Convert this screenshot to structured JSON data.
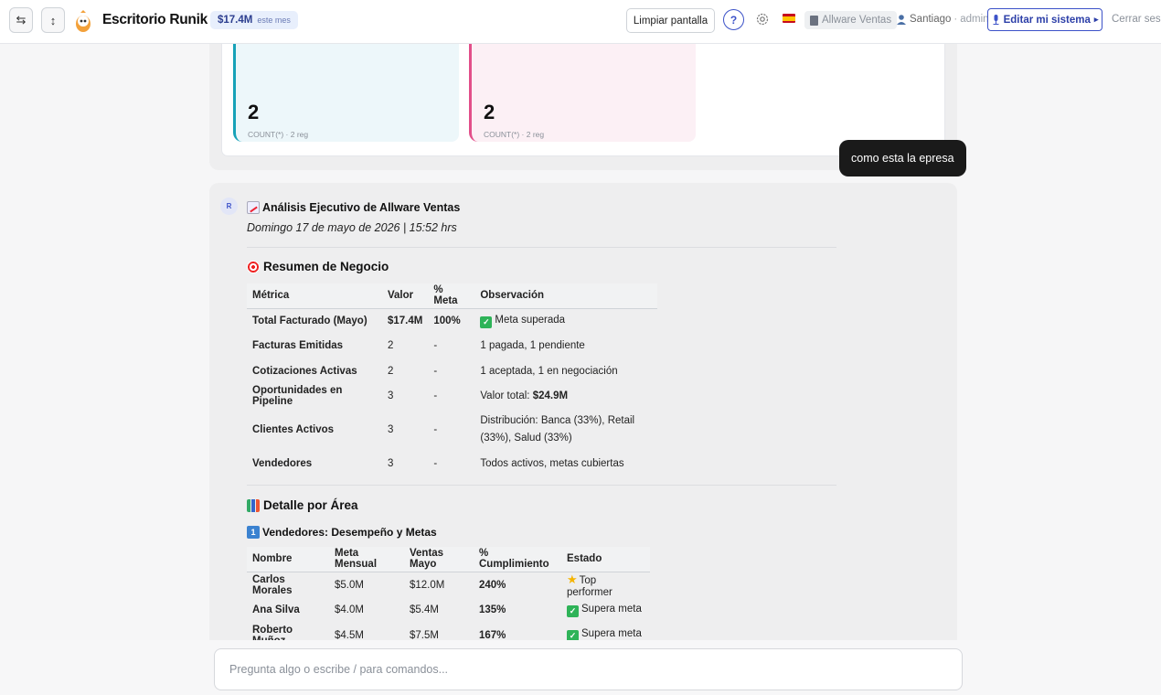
{
  "header": {
    "nav_left_icon": "swap-horizontal-icon",
    "nav_right_icon": "swap-vertical-icon",
    "app_title": "Escritorio Runik",
    "revenue_amount": "$17.4M",
    "revenue_period": "este mes",
    "clear_label": "Limpiar pantalla",
    "help_label": "?",
    "company_label": "Allware Ventas",
    "user_name": "Santiago",
    "user_sep": "·",
    "user_role": "admin",
    "edit_label": "Editar mi sistema",
    "edit_arrow": "▸",
    "logout_label": "Cerrar sesión"
  },
  "prev_stats": [
    {
      "value": "2",
      "caption": "COUNT(*) · 2 reg"
    },
    {
      "value": "2",
      "caption": "COUNT(*) · 2 reg"
    }
  ],
  "user_message": "como esta la epresa",
  "response": {
    "avatar": "R",
    "title": "Análisis Ejecutivo de Allware Ventas",
    "date": "Domingo 17 de mayo de 2026 | 15:52 hrs",
    "summary_heading": "Resumen de Negocio",
    "summary_table": {
      "headers": [
        "Métrica",
        "Valor",
        "% Meta",
        "Observación"
      ],
      "rows": [
        {
          "metric": "Total Facturado (Mayo)",
          "value": "$17.4M",
          "pct": "100%",
          "obs": "Meta superada"
        },
        {
          "metric": "Facturas Emitidas",
          "value": "2",
          "pct": "-",
          "obs": "1 pagada, 1 pendiente"
        },
        {
          "metric": "Cotizaciones Activas",
          "value": "2",
          "pct": "-",
          "obs": "1 aceptada, 1 en negociación"
        },
        {
          "metric": "Oportunidades en Pipeline",
          "value": "3",
          "pct": "-",
          "obs_prefix": "Valor total: ",
          "obs_bold": "$24.9M"
        },
        {
          "metric": "Clientes Activos",
          "value": "3",
          "pct": "-",
          "obs_line1": "Distribución: Banca (33%), Retail",
          "obs_line2": "(33%), Salud (33%)"
        },
        {
          "metric": "Vendedores",
          "value": "3",
          "pct": "-",
          "obs": "Todos activos, metas cubiertas"
        }
      ]
    },
    "detail_heading": "Detalle por Área",
    "sellers_heading": "Vendedores: Desempeño y Metas",
    "sellers_table": {
      "headers": [
        "Nombre",
        "Meta Mensual",
        "Ventas Mayo",
        "% Cumplimiento",
        "Estado"
      ],
      "rows": [
        {
          "name": "Carlos Morales",
          "goal": "$5.0M",
          "sales": "$12.0M",
          "pct": "240%",
          "status": "Top performer",
          "icon": "star-icon"
        },
        {
          "name": "Ana Silva",
          "goal": "$4.0M",
          "sales": "$5.4M",
          "pct": "135%",
          "status": "Supera meta",
          "icon": "check-icon"
        },
        {
          "name": "Roberto Muñoz",
          "goal": "$4.5M",
          "sales": "$7.5M",
          "pct": "167%",
          "status": "Supera meta",
          "icon": "check-icon"
        }
      ]
    }
  },
  "input": {
    "placeholder": "Pregunta algo o escribe / para comandos..."
  }
}
